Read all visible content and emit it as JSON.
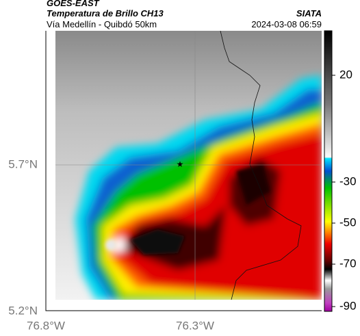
{
  "header": {
    "source": "GOES-EAST",
    "title": "Temperatura de Brillo CH13",
    "subtitle": "Vía Medellín - Quibdó 50km",
    "credit": "SIATA",
    "timestamp": "2024-03-08 06:59"
  },
  "map": {
    "lat_ticks": [
      "5.7°N",
      "5.2°N"
    ],
    "lon_ticks": [
      "76.8°W",
      "76.3°W"
    ]
  },
  "colorbar": {
    "ticks": [
      20,
      -30,
      -50,
      -70,
      -90
    ]
  }
}
